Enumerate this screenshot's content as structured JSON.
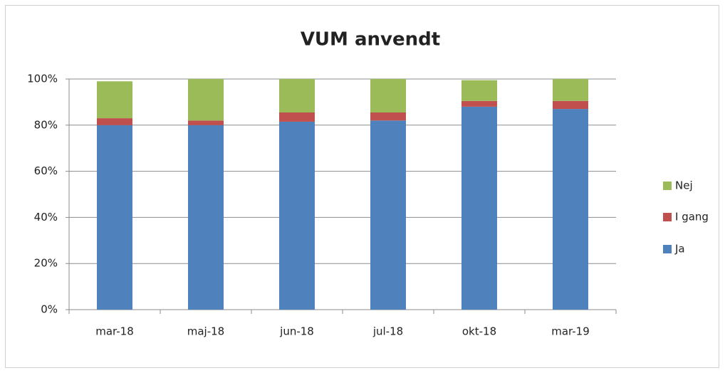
{
  "chart_data": {
    "type": "stacked_bar",
    "title": "VUM anvendt",
    "categories": [
      "mar-18",
      "maj-18",
      "jun-18",
      "jul-18",
      "okt-18",
      "mar-19"
    ],
    "series": [
      {
        "name": "Ja",
        "color": "#4f81bd",
        "values": [
          80,
          80,
          81.5,
          82,
          88,
          87
        ]
      },
      {
        "name": "I gang",
        "color": "#c0504d",
        "values": [
          3,
          2,
          4,
          3.5,
          2.5,
          3.5
        ]
      },
      {
        "name": "Nej",
        "color": "#9bbb59",
        "values": [
          16,
          18,
          14.5,
          14.5,
          9,
          9.5
        ]
      }
    ],
    "ylim": [
      0,
      100
    ],
    "yticks": [
      {
        "value": 0,
        "label": "0%"
      },
      {
        "value": 20,
        "label": "20%"
      },
      {
        "value": 40,
        "label": "40%"
      },
      {
        "value": 60,
        "label": "60%"
      },
      {
        "value": 80,
        "label": "80%"
      },
      {
        "value": 100,
        "label": "100%"
      }
    ],
    "grid": true,
    "legend": "right"
  }
}
